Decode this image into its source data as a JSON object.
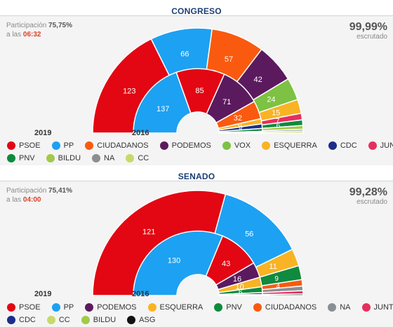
{
  "congreso": {
    "title": "CONGRESO",
    "participation_label": "Participación",
    "participation_value": "75,75%",
    "time_prefix": "a las",
    "time_value": "06:32",
    "scrutiny_value": "99,99%",
    "scrutiny_label": "escrutado",
    "year_outer": "2019",
    "year_inner": "2016",
    "legend_rows": [
      [
        {
          "label": "PSOE",
          "color": "#e30613"
        },
        {
          "label": "PP",
          "color": "#1da1f2"
        },
        {
          "label": "CIUDADANOS",
          "color": "#fa5a0f"
        },
        {
          "label": "PODEMOS",
          "color": "#5c1a5e"
        },
        {
          "label": "VOX",
          "color": "#7dc242"
        },
        {
          "label": "ESQUERRA",
          "color": "#f9b324"
        },
        {
          "label": "CDC",
          "color": "#1c2d8a"
        },
        {
          "label": "JUNTS",
          "color": "#e5305e"
        }
      ],
      [
        {
          "label": "PNV",
          "color": "#0f8a3e"
        },
        {
          "label": "BILDU",
          "color": "#a3c94a"
        },
        {
          "label": "NA",
          "color": "#8a8f93"
        },
        {
          "label": "CC",
          "color": "#c8d96a"
        }
      ]
    ]
  },
  "senado": {
    "title": "SENADO",
    "participation_label": "Participación",
    "participation_value": "75,41%",
    "time_prefix": "a las",
    "time_value": "04:00",
    "scrutiny_value": "99,28%",
    "scrutiny_label": "escrutado",
    "year_outer": "2019",
    "year_inner": "2016",
    "legend_rows": [
      [
        {
          "label": "PSOE",
          "color": "#e30613"
        },
        {
          "label": "PP",
          "color": "#1da1f2"
        },
        {
          "label": "PODEMOS",
          "color": "#5c1a5e"
        },
        {
          "label": "ESQUERRA",
          "color": "#f9b324"
        },
        {
          "label": "PNV",
          "color": "#0f8a3e"
        },
        {
          "label": "CIUDADANOS",
          "color": "#fa5a0f"
        },
        {
          "label": "NA",
          "color": "#8a8f93"
        },
        {
          "label": "JUNTS",
          "color": "#e5305e"
        }
      ],
      [
        {
          "label": "CDC",
          "color": "#1c2d8a"
        },
        {
          "label": "CC",
          "color": "#c8d96a"
        },
        {
          "label": "BILDU",
          "color": "#a3c94a"
        },
        {
          "label": "ASG",
          "color": "#111111"
        }
      ]
    ]
  },
  "chart_data": [
    {
      "type": "pie",
      "title": "CONGRESO",
      "series": [
        {
          "name": "2019",
          "ring": "outer",
          "values": [
            {
              "party": "PSOE",
              "seats": 123,
              "color": "#e30613"
            },
            {
              "party": "PP",
              "seats": 66,
              "color": "#1da1f2"
            },
            {
              "party": "CIUDADANOS",
              "seats": 57,
              "color": "#fa5a0f"
            },
            {
              "party": "PODEMOS",
              "seats": 42,
              "color": "#5c1a5e"
            },
            {
              "party": "VOX",
              "seats": 24,
              "color": "#7dc242"
            },
            {
              "party": "ESQUERRA",
              "seats": 15,
              "color": "#f9b324"
            },
            {
              "party": "JUNTS",
              "seats": 7,
              "color": "#e5305e"
            },
            {
              "party": "PNV",
              "seats": 6,
              "color": "#0f8a3e"
            },
            {
              "party": "BILDU",
              "seats": 4,
              "color": "#a3c94a"
            },
            {
              "party": "NA",
              "seats": 2,
              "color": "#8a8f93"
            },
            {
              "party": "CC",
              "seats": 2,
              "color": "#c8d96a"
            }
          ]
        },
        {
          "name": "2016",
          "ring": "inner",
          "values": [
            {
              "party": "PP",
              "seats": 137,
              "color": "#1da1f2"
            },
            {
              "party": "PSOE",
              "seats": 85,
              "color": "#e30613"
            },
            {
              "party": "PODEMOS",
              "seats": 71,
              "color": "#5c1a5e"
            },
            {
              "party": "CIUDADANOS",
              "seats": 32,
              "color": "#fa5a0f"
            },
            {
              "party": "ESQUERRA",
              "seats": 9,
              "color": "#f9b324"
            },
            {
              "party": "CDC",
              "seats": 8,
              "color": "#1c2d8a"
            },
            {
              "party": "PNV",
              "seats": 5,
              "color": "#0f8a3e"
            },
            {
              "party": "BILDU",
              "seats": 2,
              "color": "#a3c94a"
            },
            {
              "party": "CC",
              "seats": 1,
              "color": "#c8d96a"
            }
          ]
        }
      ]
    },
    {
      "type": "pie",
      "title": "SENADO",
      "series": [
        {
          "name": "2019",
          "ring": "outer",
          "values": [
            {
              "party": "PSOE",
              "seats": 121,
              "color": "#e30613"
            },
            {
              "party": "PP",
              "seats": 56,
              "color": "#1da1f2"
            },
            {
              "party": "ESQUERRA",
              "seats": 11,
              "color": "#f9b324"
            },
            {
              "party": "PNV",
              "seats": 9,
              "color": "#0f8a3e"
            },
            {
              "party": "CIUDADANOS",
              "seats": 4,
              "color": "#fa5a0f"
            },
            {
              "party": "NA",
              "seats": 3,
              "color": "#8a8f93"
            },
            {
              "party": "JUNTS",
              "seats": 2,
              "color": "#e5305e"
            },
            {
              "party": "ASG",
              "seats": 1,
              "color": "#111111"
            }
          ]
        },
        {
          "name": "2016",
          "ring": "inner",
          "values": [
            {
              "party": "PP",
              "seats": 130,
              "color": "#1da1f2"
            },
            {
              "party": "PSOE",
              "seats": 43,
              "color": "#e30613"
            },
            {
              "party": "PODEMOS",
              "seats": 16,
              "color": "#5c1a5e"
            },
            {
              "party": "ESQUERRA",
              "seats": 10,
              "color": "#f9b324"
            },
            {
              "party": "PNV",
              "seats": 6,
              "color": "#0f8a3e"
            },
            {
              "party": "CDC",
              "seats": 2,
              "color": "#1c2d8a"
            },
            {
              "party": "CC",
              "seats": 1,
              "color": "#c8d96a"
            }
          ]
        }
      ]
    }
  ]
}
